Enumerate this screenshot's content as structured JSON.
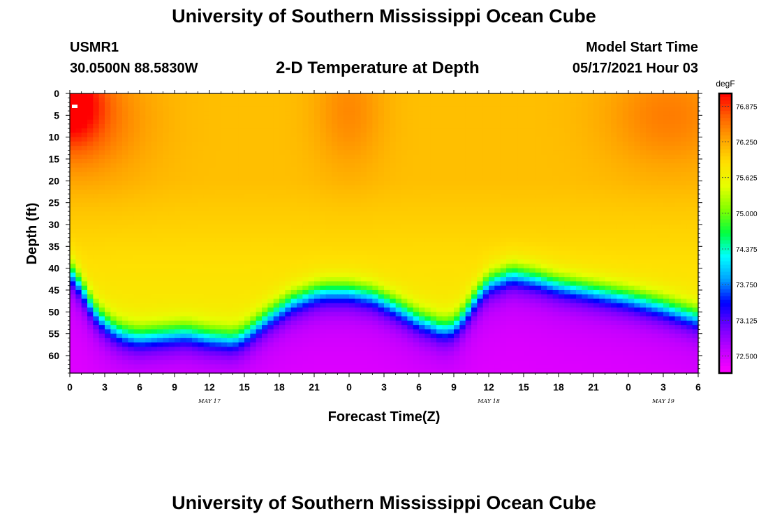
{
  "header": {
    "title": "University of Southern Mississippi Ocean Cube",
    "station": "USMR1",
    "coords": "30.0500N  88.5830W",
    "subtitle": "2-D Temperature at Depth",
    "model_label": "Model Start Time",
    "model_date": "05/17/2021 Hour 03"
  },
  "footer": {
    "title": "University of Southern Mississippi Ocean Cube"
  },
  "chart_data": {
    "type": "heatmap",
    "xlabel": "Forecast Time(Z)",
    "ylabel": "Depth (ft)",
    "x_tick_labels": [
      "0",
      "3",
      "6",
      "9",
      "12",
      "15",
      "18",
      "21",
      "0",
      "3",
      "6",
      "9",
      "12",
      "15",
      "18",
      "21",
      "0",
      "3",
      "6"
    ],
    "x_range_hours": [
      0,
      54
    ],
    "date_labels": [
      {
        "text": "MAY 17",
        "hour": 12
      },
      {
        "text": "MAY 18",
        "hour": 36
      },
      {
        "text": "MAY 19",
        "hour": 51
      }
    ],
    "y_tick_labels": [
      0,
      5,
      10,
      15,
      20,
      25,
      30,
      35,
      40,
      45,
      50,
      55,
      60
    ],
    "y_range_ft": [
      0,
      64
    ],
    "colorbar": {
      "unit": "degF",
      "min": 72.2,
      "max": 77.1,
      "labels": [
        "76.875",
        "76.250",
        "75.625",
        "75.000",
        "74.375",
        "73.750",
        "73.125",
        "72.500"
      ],
      "colors": [
        "#ff00ff",
        "#c000ff",
        "#7000ff",
        "#0000ff",
        "#00a0ff",
        "#00ffff",
        "#00ff40",
        "#80ff00",
        "#e6ff00",
        "#ffe000",
        "#ffa500",
        "#ff6000",
        "#ff0000"
      ]
    },
    "thermocline_depth_ft": {
      "hours": [
        0,
        1,
        2,
        3,
        4,
        5,
        6,
        8,
        10,
        12,
        14,
        15,
        17,
        19,
        21,
        22,
        24,
        26,
        28,
        30,
        32,
        33,
        34,
        35,
        36,
        38,
        40,
        42,
        45,
        48,
        51,
        54
      ],
      "depth": [
        40,
        44,
        49,
        52,
        54,
        55,
        55.5,
        55,
        54.5,
        55.5,
        56,
        55,
        51,
        47.5,
        45.5,
        45,
        45,
        46,
        48.5,
        51.5,
        53.5,
        53,
        50,
        46,
        43,
        41,
        42,
        43.5,
        45,
        46.5,
        48.5,
        51
      ]
    },
    "surface_warm_zones": [
      {
        "hour": 0,
        "depth": 2,
        "sigma_h": 2.0,
        "sigma_d": 7,
        "amp": 0.9
      },
      {
        "hour": 1.5,
        "depth": 6,
        "sigma_h": 4.0,
        "sigma_d": 10,
        "amp": 0.45
      },
      {
        "hour": 24,
        "depth": 4,
        "sigma_h": 2.2,
        "sigma_d": 10,
        "amp": 0.35
      },
      {
        "hour": 51.5,
        "depth": 5,
        "sigma_h": 4.0,
        "sigma_d": 9,
        "amp": 0.42
      }
    ]
  }
}
